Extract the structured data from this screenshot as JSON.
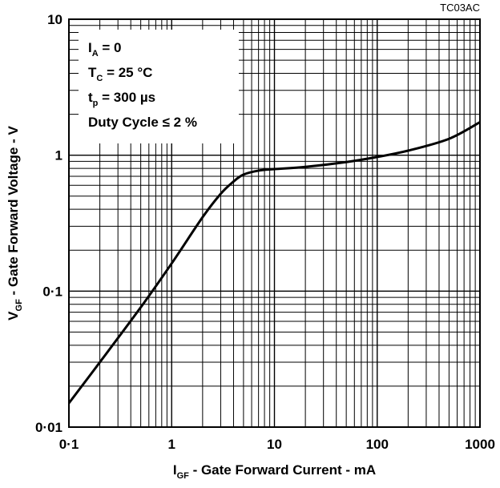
{
  "figure_code": "TC03AC",
  "conditions": [
    {
      "main": "I",
      "sub": "A",
      "rest": " = 0"
    },
    {
      "main": "T",
      "sub": "C",
      "rest": " = 25 °C"
    },
    {
      "main": "t",
      "sub": "p",
      "rest": " = 300 µs"
    },
    {
      "main": "Duty Cycle ≤ 2 %",
      "sub": "",
      "rest": ""
    }
  ],
  "chart_data": {
    "type": "line",
    "xscale": "log",
    "yscale": "log",
    "xlim": [
      0.1,
      1000
    ],
    "ylim": [
      0.01,
      10
    ],
    "grid": true,
    "xlabel": {
      "main": "I",
      "sub": "GF",
      "rest": " - Gate Forward Current - mA"
    },
    "ylabel": {
      "main": "V",
      "sub": "GF",
      "rest": " - Gate Forward Voltage - V"
    },
    "x_tick_labels": [
      "0·1",
      "1",
      "10",
      "100",
      "1000"
    ],
    "y_tick_labels": [
      "0·01",
      "0·1",
      "1",
      "10"
    ],
    "x_tick_values": [
      0.1,
      1,
      10,
      100,
      1000
    ],
    "y_tick_values": [
      0.01,
      0.1,
      1,
      10
    ],
    "series": [
      {
        "x": [
          0.1,
          0.2,
          0.5,
          1,
          2,
          3,
          4,
          5,
          7,
          10,
          20,
          50,
          100,
          200,
          500,
          1000
        ],
        "y": [
          0.015,
          0.03,
          0.076,
          0.16,
          0.35,
          0.52,
          0.64,
          0.72,
          0.77,
          0.79,
          0.82,
          0.89,
          0.97,
          1.08,
          1.32,
          1.75
        ]
      }
    ]
  }
}
